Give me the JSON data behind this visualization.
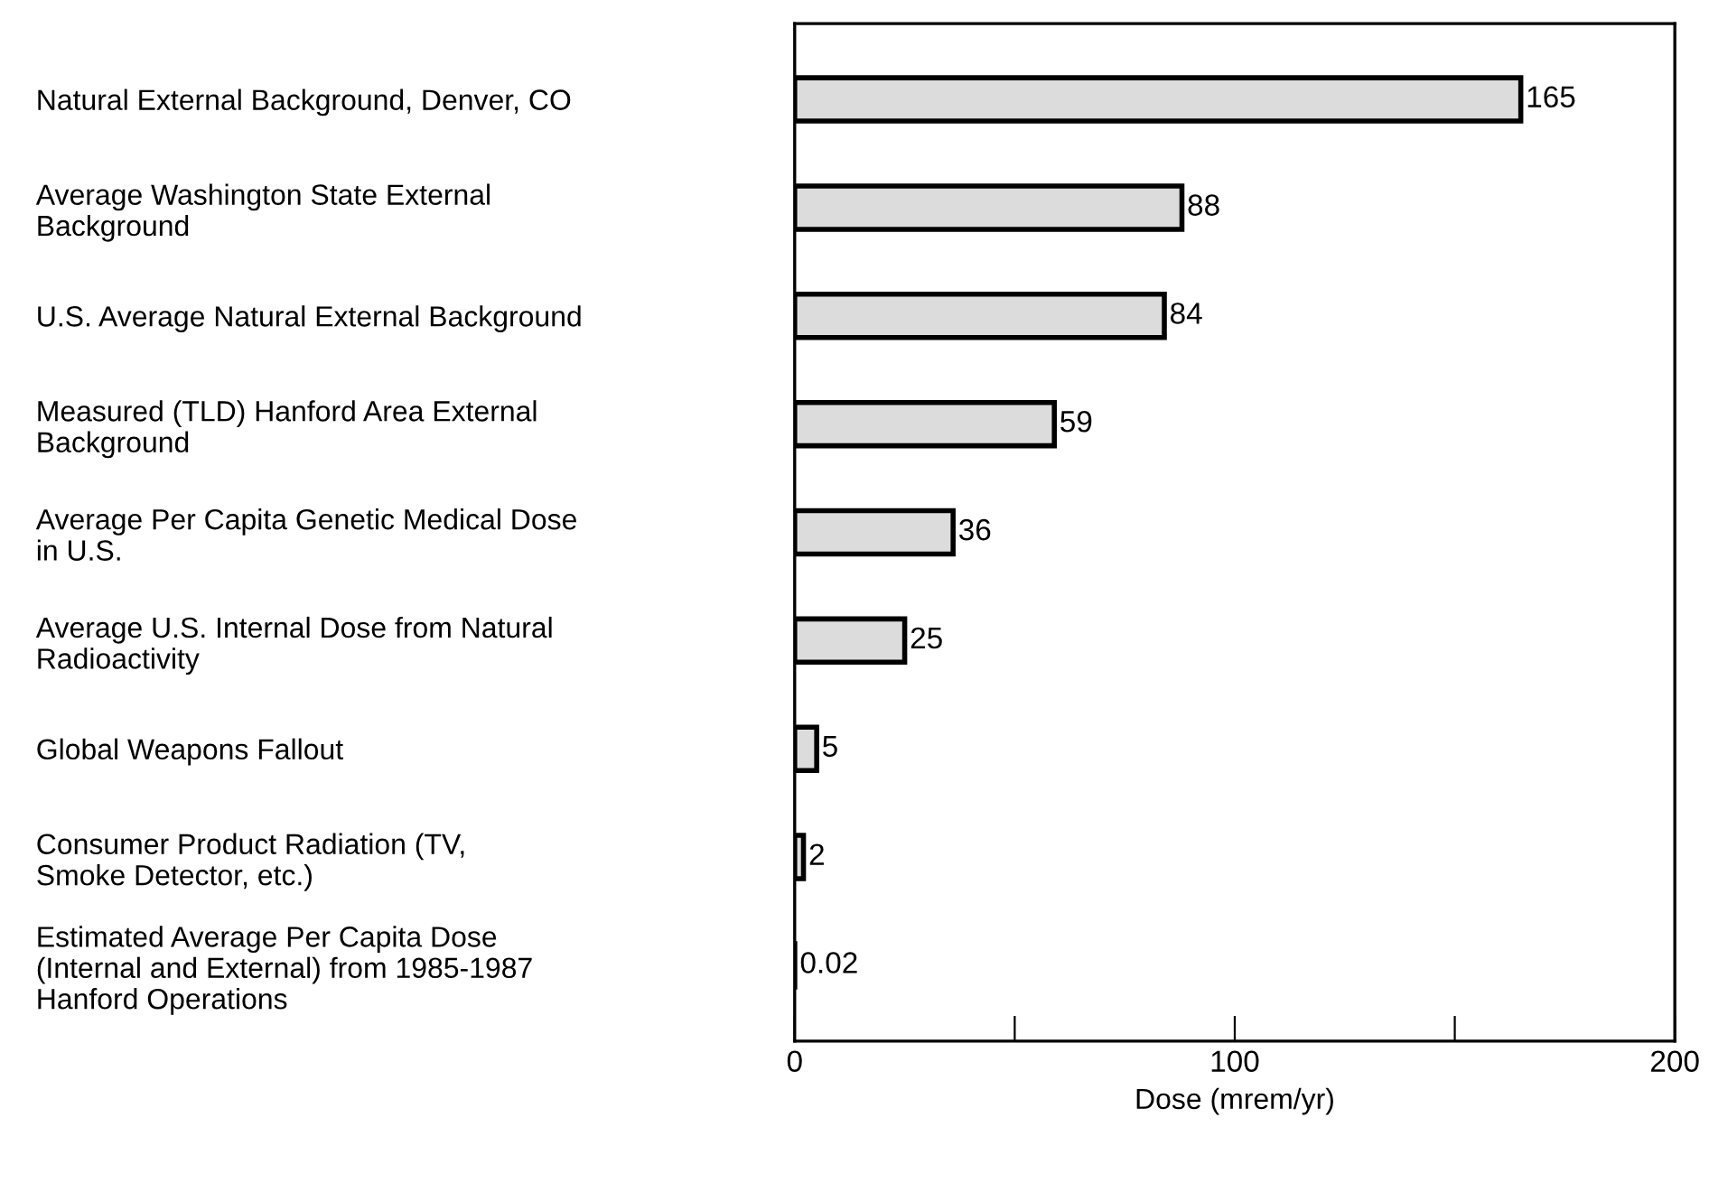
{
  "chart_data": {
    "type": "bar",
    "orientation": "horizontal",
    "xlabel": "Dose (mrem/yr)",
    "categories": [
      "Natural External Background, Denver, CO",
      "Average Washington State External\nBackground",
      "U.S. Average Natural External Background",
      "Measured (TLD) Hanford Area External\nBackground",
      "Average Per Capita Genetic Medical Dose\nin U.S.",
      "Average U.S. Internal Dose from Natural\nRadioactivity",
      "Global Weapons Fallout",
      "Consumer Product Radiation (TV,\nSmoke Detector, etc.)",
      "Estimated Average Per Capita Dose\n(Internal and External) from 1985-1987\nHanford Operations"
    ],
    "values": [
      165,
      88,
      84,
      59,
      36,
      25,
      5,
      2,
      0.02
    ],
    "value_labels": [
      "165",
      "88",
      "84",
      "59",
      "36",
      "25",
      "5",
      "2",
      "0.02"
    ],
    "color": "#dcdcdc",
    "xlim": [
      0,
      200
    ],
    "xticks": [
      0,
      {
        "value": 50,
        "label": null
      },
      100,
      {
        "value": 150,
        "label": null
      },
      200
    ],
    "grid": false
  }
}
